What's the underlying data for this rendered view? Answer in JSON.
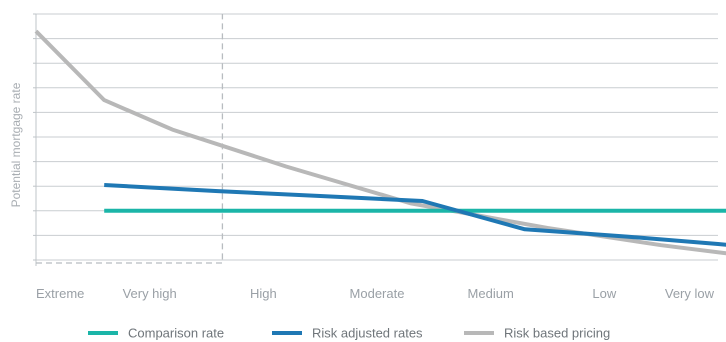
{
  "chart_data": {
    "type": "line",
    "title": "",
    "xlabel": "",
    "ylabel": "Potential mortgage rate",
    "categories": [
      "Extreme",
      "Very high",
      "High",
      "Moderate",
      "Medium",
      "Low",
      "Very low"
    ],
    "ylim": [
      0,
      10
    ],
    "grid": true,
    "y_tick_labels": false,
    "legend_position": "bottom",
    "highlight_region": {
      "x_range": [
        "Extreme",
        "Very high"
      ],
      "style": "dashed-box"
    },
    "series": [
      {
        "name": "Comparison rate",
        "color": "#1bb5a8",
        "x": [
          0.6,
          3,
          6.7
        ],
        "values": [
          2.0,
          2.0,
          2.0
        ]
      },
      {
        "name": "Risk adjusted rates",
        "color": "#1f78b4",
        "x": [
          0.6,
          1.6,
          2.5,
          3.4,
          4.3,
          5.2,
          6.0,
          6.7
        ],
        "values": [
          3.05,
          2.8,
          2.6,
          2.4,
          1.25,
          0.95,
          0.65,
          0.35
        ]
      },
      {
        "name": "Risk based pricing",
        "color": "#b8b8b8",
        "x": [
          0,
          0.6,
          1.2,
          2.2,
          3.3,
          4.5,
          5.5,
          6.2,
          6.7
        ],
        "values": [
          9.3,
          6.5,
          5.3,
          3.8,
          2.3,
          1.3,
          0.6,
          0.2,
          0.0
        ]
      }
    ]
  },
  "legend": {
    "items": [
      {
        "label": "Comparison rate",
        "color": "#1bb5a8"
      },
      {
        "label": "Risk adjusted rates",
        "color": "#1f78b4"
      },
      {
        "label": "Risk based pricing",
        "color": "#b8b8b8"
      }
    ]
  },
  "colors": {
    "grid": "#c9cdd1",
    "axis": "#bfc4c8",
    "dashed": "#b8bcc0"
  }
}
